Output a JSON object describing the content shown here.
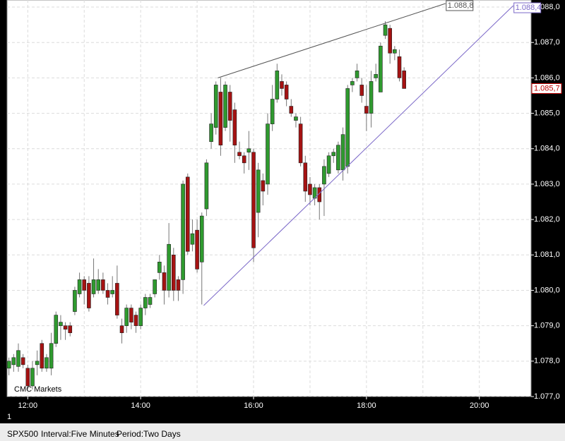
{
  "chart_data": {
    "type": "candlestick",
    "symbol": "SPX500",
    "interval": "Interval:Five Minutes",
    "period": "Period:Two Days",
    "source": "CMC Markets",
    "pane_label": "1",
    "up_color": "#2f9a2f",
    "down_color": "#a51212",
    "grid": true,
    "xlim": [
      "11:38",
      "20:55"
    ],
    "xticks": [
      "12:00",
      "14:00",
      "16:00",
      "18:00",
      "20:00"
    ],
    "xgrid": [
      "12:00",
      "13:00",
      "14:00",
      "15:00",
      "16:00",
      "17:00",
      "18:00",
      "19:00",
      "20:00"
    ],
    "ylim": [
      1077.0,
      1088.2
    ],
    "yticks": [
      {
        "value": 1077,
        "label": "1.077,0"
      },
      {
        "value": 1078,
        "label": "1.078,0"
      },
      {
        "value": 1079,
        "label": "1.079,0"
      },
      {
        "value": 1080,
        "label": "1.080,0"
      },
      {
        "value": 1081,
        "label": "1.081,0"
      },
      {
        "value": 1082,
        "label": "1.082,0"
      },
      {
        "value": 1083,
        "label": "1.083,0"
      },
      {
        "value": 1084,
        "label": "1.084,0"
      },
      {
        "value": 1085,
        "label": "1.085,0"
      },
      {
        "value": 1086,
        "label": "1.086,0"
      },
      {
        "value": 1087,
        "label": "1.087,0"
      },
      {
        "value": 1088,
        "label": "1.088,0"
      }
    ],
    "x": [
      "11:40",
      "11:45",
      "11:50",
      "11:55",
      "12:00",
      "12:05",
      "12:10",
      "12:15",
      "12:20",
      "12:25",
      "12:30",
      "12:35",
      "12:40",
      "12:45",
      "12:50",
      "12:55",
      "13:00",
      "13:05",
      "13:10",
      "13:15",
      "13:20",
      "13:25",
      "13:30",
      "13:35",
      "13:40",
      "13:45",
      "13:50",
      "13:55",
      "14:00",
      "14:05",
      "14:10",
      "14:15",
      "14:20",
      "14:25",
      "14:30",
      "14:35",
      "14:40",
      "14:45",
      "14:50",
      "14:55",
      "15:00",
      "15:05",
      "15:10",
      "15:15",
      "15:20",
      "15:25",
      "15:30",
      "15:35",
      "15:40",
      "15:45",
      "15:50",
      "15:55",
      "16:00",
      "16:05",
      "16:10",
      "16:15",
      "16:20",
      "16:25",
      "16:30",
      "16:35",
      "16:40",
      "16:45",
      "16:50",
      "16:55",
      "17:00",
      "17:05",
      "17:10",
      "17:15",
      "17:20",
      "17:25",
      "17:30",
      "17:35",
      "17:40",
      "17:45",
      "17:50",
      "17:55",
      "18:00",
      "18:05",
      "18:10",
      "18:15",
      "18:20",
      "18:25",
      "18:30",
      "18:35",
      "18:40"
    ],
    "open": [
      1077.8,
      1077.9,
      1077.85,
      1078.1,
      1077.8,
      1077.3,
      1077.9,
      1078.5,
      1077.8,
      1077.8,
      1078.5,
      1079.0,
      1079.0,
      1079.0,
      1079.4,
      1079.9,
      1080.3,
      1080.2,
      1079.9,
      1080.0,
      1080.3,
      1080.0,
      1079.9,
      1080.2,
      1079.0,
      1079.0,
      1079.5,
      1079.3,
      1079.0,
      1079.5,
      1079.6,
      1079.9,
      1080.5,
      1080.5,
      1080.0,
      1081.0,
      1080.3,
      1080.3,
      1083.2,
      1081.3,
      1081.7,
      1080.8,
      1082.3,
      1084.2,
      1084.6,
      1085.6,
      1084.6,
      1085.6,
      1085.1,
      1083.9,
      1083.8,
      1083.9,
      1083.9,
      1082.2,
      1083.1,
      1083.0,
      1084.7,
      1085.4,
      1085.9,
      1085.8,
      1085.2,
      1084.8,
      1084.7,
      1083.6,
      1083.0,
      1082.6,
      1082.9,
      1083.0,
      1083.3,
      1083.8,
      1083.4,
      1083.4,
      1083.5,
      1085.8,
      1086.0,
      1085.8,
      1085.2,
      1085.0,
      1086.0,
      1085.6,
      1087.2,
      1087.4,
      1086.7,
      1086.6,
      1086.2
    ],
    "high": [
      1078.1,
      1078.2,
      1078.5,
      1078.2,
      1077.9,
      1078.0,
      1078.3,
      1078.6,
      1078.2,
      1078.8,
      1079.4,
      1079.3,
      1079.1,
      1079.1,
      1080.1,
      1080.5,
      1080.4,
      1080.4,
      1080.9,
      1080.6,
      1080.5,
      1080.2,
      1080.4,
      1080.7,
      1079.2,
      1079.6,
      1079.6,
      1079.4,
      1079.6,
      1079.9,
      1079.9,
      1080.3,
      1081.0,
      1080.7,
      1081.9,
      1081.2,
      1080.4,
      1083.1,
      1083.3,
      1082.0,
      1082.0,
      1082.2,
      1083.7,
      1085.0,
      1085.9,
      1086.0,
      1085.9,
      1085.8,
      1085.3,
      1084.2,
      1083.9,
      1084.5,
      1084.0,
      1083.6,
      1083.3,
      1085.0,
      1085.8,
      1086.4,
      1086.1,
      1085.9,
      1085.4,
      1085.0,
      1084.9,
      1083.8,
      1083.2,
      1083.0,
      1083.0,
      1083.7,
      1083.9,
      1084.0,
      1084.2,
      1084.6,
      1085.8,
      1086.0,
      1086.4,
      1086.0,
      1085.8,
      1086.2,
      1086.4,
      1087.0,
      1087.6,
      1087.5,
      1086.9,
      1086.8,
      1086.3
    ],
    "low": [
      1077.6,
      1077.7,
      1077.7,
      1077.8,
      1077.2,
      1077.2,
      1077.6,
      1077.7,
      1077.7,
      1077.6,
      1078.4,
      1078.6,
      1078.6,
      1078.7,
      1079.3,
      1079.8,
      1079.6,
      1079.4,
      1079.8,
      1079.9,
      1079.9,
      1079.6,
      1079.8,
      1079.2,
      1078.5,
      1078.8,
      1078.9,
      1078.8,
      1078.9,
      1079.3,
      1079.5,
      1079.8,
      1080.3,
      1079.6,
      1079.8,
      1079.7,
      1079.7,
      1079.9,
      1081.0,
      1081.1,
      1080.5,
      1079.6,
      1082.1,
      1084.0,
      1084.4,
      1083.8,
      1084.5,
      1084.2,
      1083.6,
      1083.7,
      1083.3,
      1083.4,
      1080.8,
      1081.5,
      1082.4,
      1082.7,
      1084.5,
      1085.3,
      1085.5,
      1085.2,
      1084.9,
      1084.6,
      1083.5,
      1082.5,
      1082.4,
      1082.4,
      1082.0,
      1082.1,
      1083.2,
      1083.6,
      1083.3,
      1083.1,
      1083.3,
      1085.6,
      1085.9,
      1085.3,
      1084.5,
      1084.6,
      1085.9,
      1085.6,
      1087.1,
      1086.4,
      1086.5,
      1085.9,
      1085.7
    ],
    "close": [
      1078.0,
      1078.1,
      1078.3,
      1077.9,
      1077.3,
      1077.8,
      1078.0,
      1077.8,
      1078.1,
      1078.5,
      1079.3,
      1079.1,
      1078.9,
      1078.8,
      1080.0,
      1080.3,
      1080.0,
      1079.5,
      1080.3,
      1080.3,
      1080.0,
      1079.8,
      1080.0,
      1079.3,
      1078.8,
      1079.5,
      1079.1,
      1079.0,
      1079.5,
      1079.8,
      1079.8,
      1080.3,
      1080.8,
      1080.0,
      1081.3,
      1080.0,
      1080.0,
      1083.0,
      1081.1,
      1081.6,
      1080.6,
      1082.1,
      1083.6,
      1084.7,
      1085.8,
      1084.1,
      1085.8,
      1084.8,
      1084.1,
      1083.8,
      1083.6,
      1084.0,
      1081.2,
      1083.4,
      1082.8,
      1084.7,
      1085.4,
      1086.2,
      1085.7,
      1085.4,
      1085.0,
      1084.9,
      1083.6,
      1082.8,
      1082.7,
      1082.9,
      1082.5,
      1083.5,
      1083.8,
      1083.9,
      1084.1,
      1084.4,
      1085.7,
      1085.9,
      1086.2,
      1085.5,
      1085.0,
      1085.9,
      1086.1,
      1086.9,
      1087.5,
      1086.7,
      1086.8,
      1086.0,
      1085.7
    ],
    "last_price": {
      "value": 1085.7,
      "label": "1.085,7",
      "color": "#c00000"
    },
    "trendlines": [
      {
        "x": [
          "15:22",
          "19:24"
        ],
        "y": [
          1086.0,
          1088.1
        ],
        "color": "#555555",
        "label": "1.088,8"
      },
      {
        "x": [
          "15:07",
          "20:36"
        ],
        "y": [
          1079.57,
          1088.04
        ],
        "color": "#7b68c8",
        "label": "1.088,4"
      }
    ]
  }
}
